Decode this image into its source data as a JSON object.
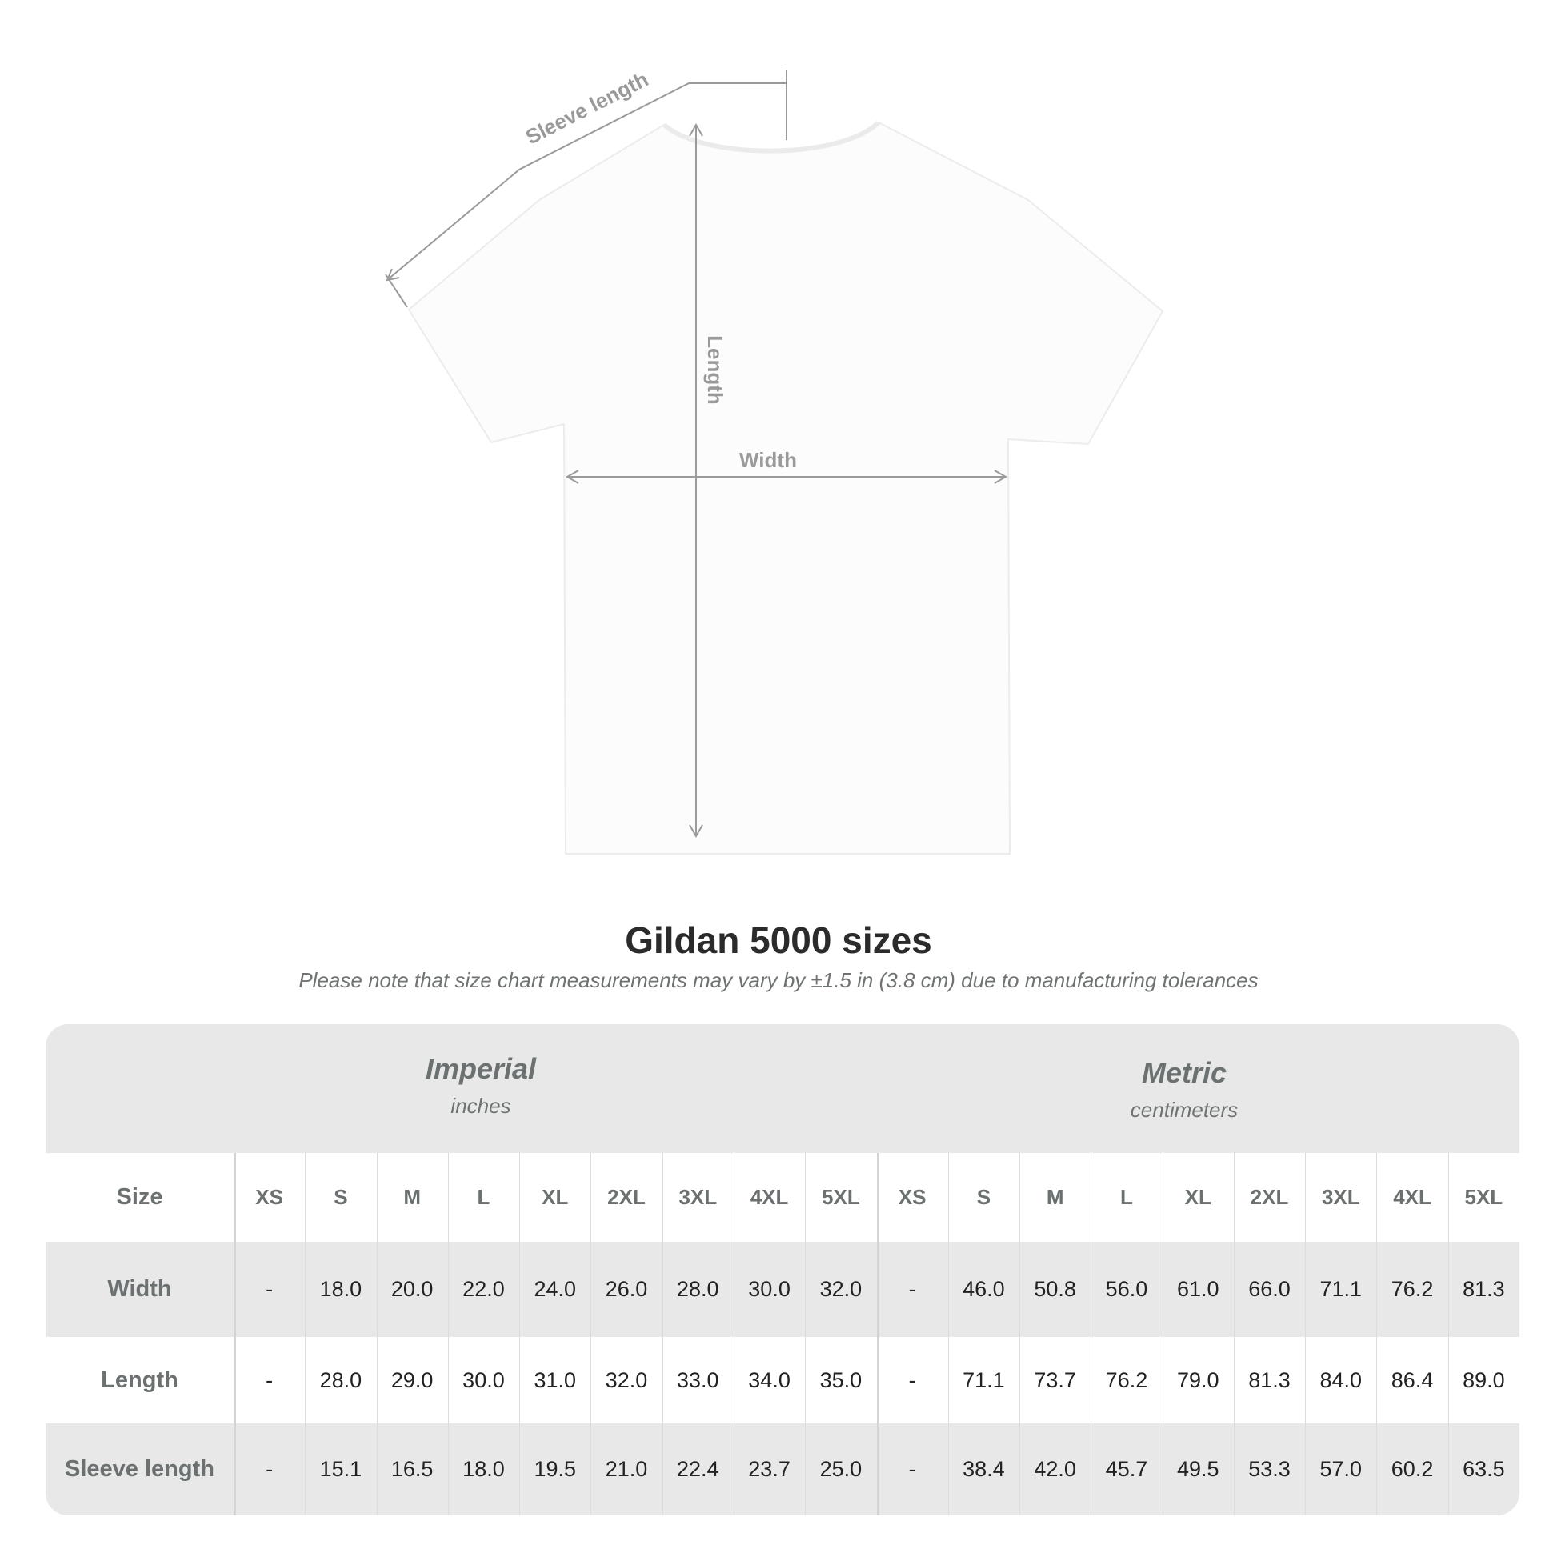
{
  "diagram": {
    "labels": {
      "sleeve": "Sleeve length",
      "length": "Length",
      "width": "Width"
    },
    "shirt_color": "#ffffff",
    "line_color": "#9a9a9a"
  },
  "title": "Gildan 5000 sizes",
  "subtitle": "Please note that size chart measurements may vary by ±1.5 in (3.8 cm) due to manufacturing tolerances",
  "table": {
    "imperial": {
      "name": "Imperial",
      "unit": "inches"
    },
    "metric": {
      "name": "Metric",
      "unit": "centimeters"
    },
    "size_label": "Size",
    "sizes": [
      "XS",
      "S",
      "M",
      "L",
      "XL",
      "2XL",
      "3XL",
      "4XL",
      "5XL"
    ],
    "rows": [
      {
        "label": "Width",
        "imperial": [
          "-",
          "18.0",
          "20.0",
          "22.0",
          "24.0",
          "26.0",
          "28.0",
          "30.0",
          "32.0"
        ],
        "metric": [
          "-",
          "46.0",
          "50.8",
          "56.0",
          "61.0",
          "66.0",
          "71.1",
          "76.2",
          "81.3"
        ]
      },
      {
        "label": "Length",
        "imperial": [
          "-",
          "28.0",
          "29.0",
          "30.0",
          "31.0",
          "32.0",
          "33.0",
          "34.0",
          "35.0"
        ],
        "metric": [
          "-",
          "71.1",
          "73.7",
          "76.2",
          "79.0",
          "81.3",
          "84.0",
          "86.4",
          "89.0"
        ]
      },
      {
        "label": "Sleeve length",
        "imperial": [
          "-",
          "15.1",
          "16.5",
          "18.0",
          "19.5",
          "21.0",
          "22.4",
          "23.7",
          "25.0"
        ],
        "metric": [
          "-",
          "38.4",
          "42.0",
          "45.7",
          "49.5",
          "53.3",
          "57.0",
          "60.2",
          "63.5"
        ]
      }
    ],
    "band_color": "#e8e8e8"
  }
}
